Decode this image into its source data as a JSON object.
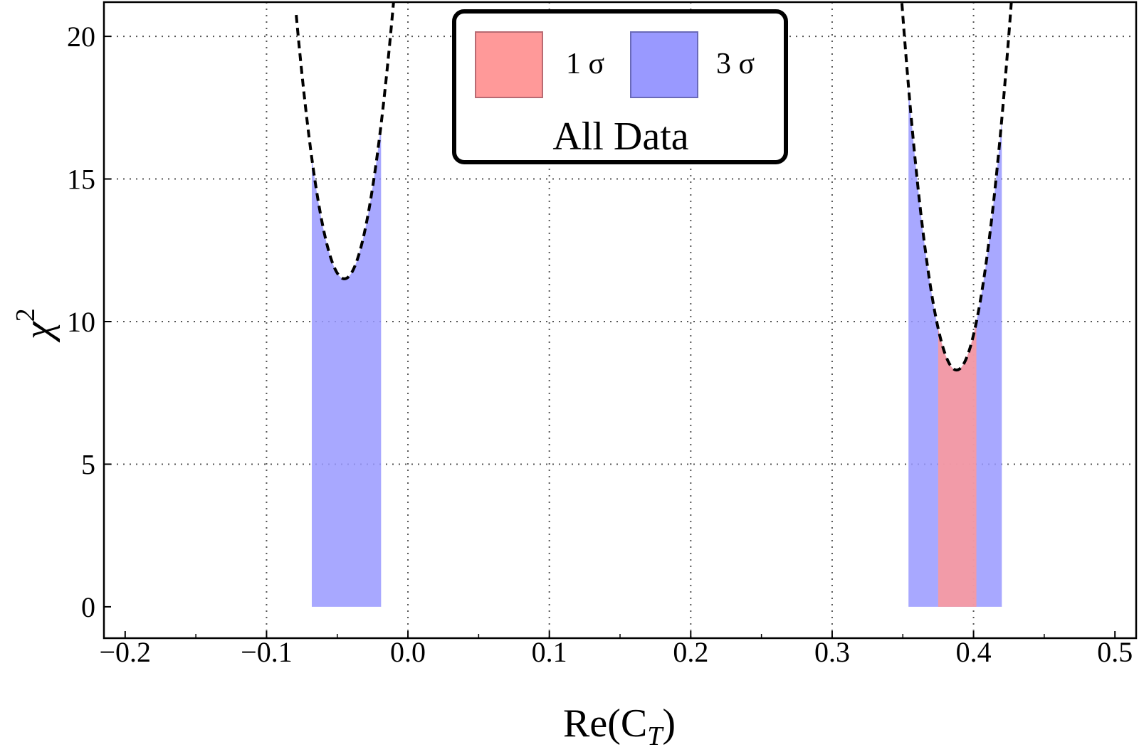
{
  "chart_data": {
    "type": "area",
    "title": "",
    "xlabel": "Re(C",
    "xlabel_sub": "T",
    "xlabel_close": ")",
    "ylabel": "χ",
    "ylabel_sup": "2",
    "xlim": [
      -0.215,
      0.515
    ],
    "ylim": [
      -1.1,
      21.2
    ],
    "grid": true,
    "x_ticks": [
      {
        "value": -0.2,
        "label": "−0.2"
      },
      {
        "value": -0.1,
        "label": "−0.1"
      },
      {
        "value": 0.0,
        "label": "0.0"
      },
      {
        "value": 0.1,
        "label": "0.1"
      },
      {
        "value": 0.2,
        "label": "0.2"
      },
      {
        "value": 0.3,
        "label": "0.3"
      },
      {
        "value": 0.4,
        "label": "0.4"
      },
      {
        "value": 0.5,
        "label": "0.5"
      }
    ],
    "y_ticks": [
      {
        "value": 0,
        "label": "0"
      },
      {
        "value": 5,
        "label": "5"
      },
      {
        "value": 10,
        "label": "10"
      },
      {
        "value": 15,
        "label": "15"
      },
      {
        "value": 20,
        "label": "20"
      }
    ],
    "curves": [
      {
        "name": "chi2-left-minimum",
        "style": "dashed",
        "center": -0.045,
        "min": 11.5,
        "curvature": 8000,
        "x_range": [
          -0.079,
          -0.009
        ]
      },
      {
        "name": "chi2-right-minimum",
        "style": "dashed",
        "center": 0.388,
        "min": 8.3,
        "curvature": 8600,
        "x_range": [
          0.348,
          0.428
        ]
      }
    ],
    "series": [
      {
        "name": "3 σ",
        "color": "#9999ff",
        "regions": [
          {
            "x_range": [
              -0.068,
              -0.019
            ],
            "curve": "chi2-left-minimum"
          },
          {
            "x_range": [
              0.354,
              0.42
            ],
            "curve": "chi2-right-minimum"
          }
        ]
      },
      {
        "name": "1 σ",
        "color": "#ff9999",
        "regions": [
          {
            "x_range": [
              0.375,
              0.402
            ],
            "curve": "chi2-right-minimum"
          }
        ]
      }
    ],
    "legend": {
      "placement": "top-center",
      "title": "All Data",
      "entries": [
        {
          "label": "1 σ",
          "color": "#ff9999"
        },
        {
          "label": "3 σ",
          "color": "#9999ff"
        }
      ]
    }
  }
}
